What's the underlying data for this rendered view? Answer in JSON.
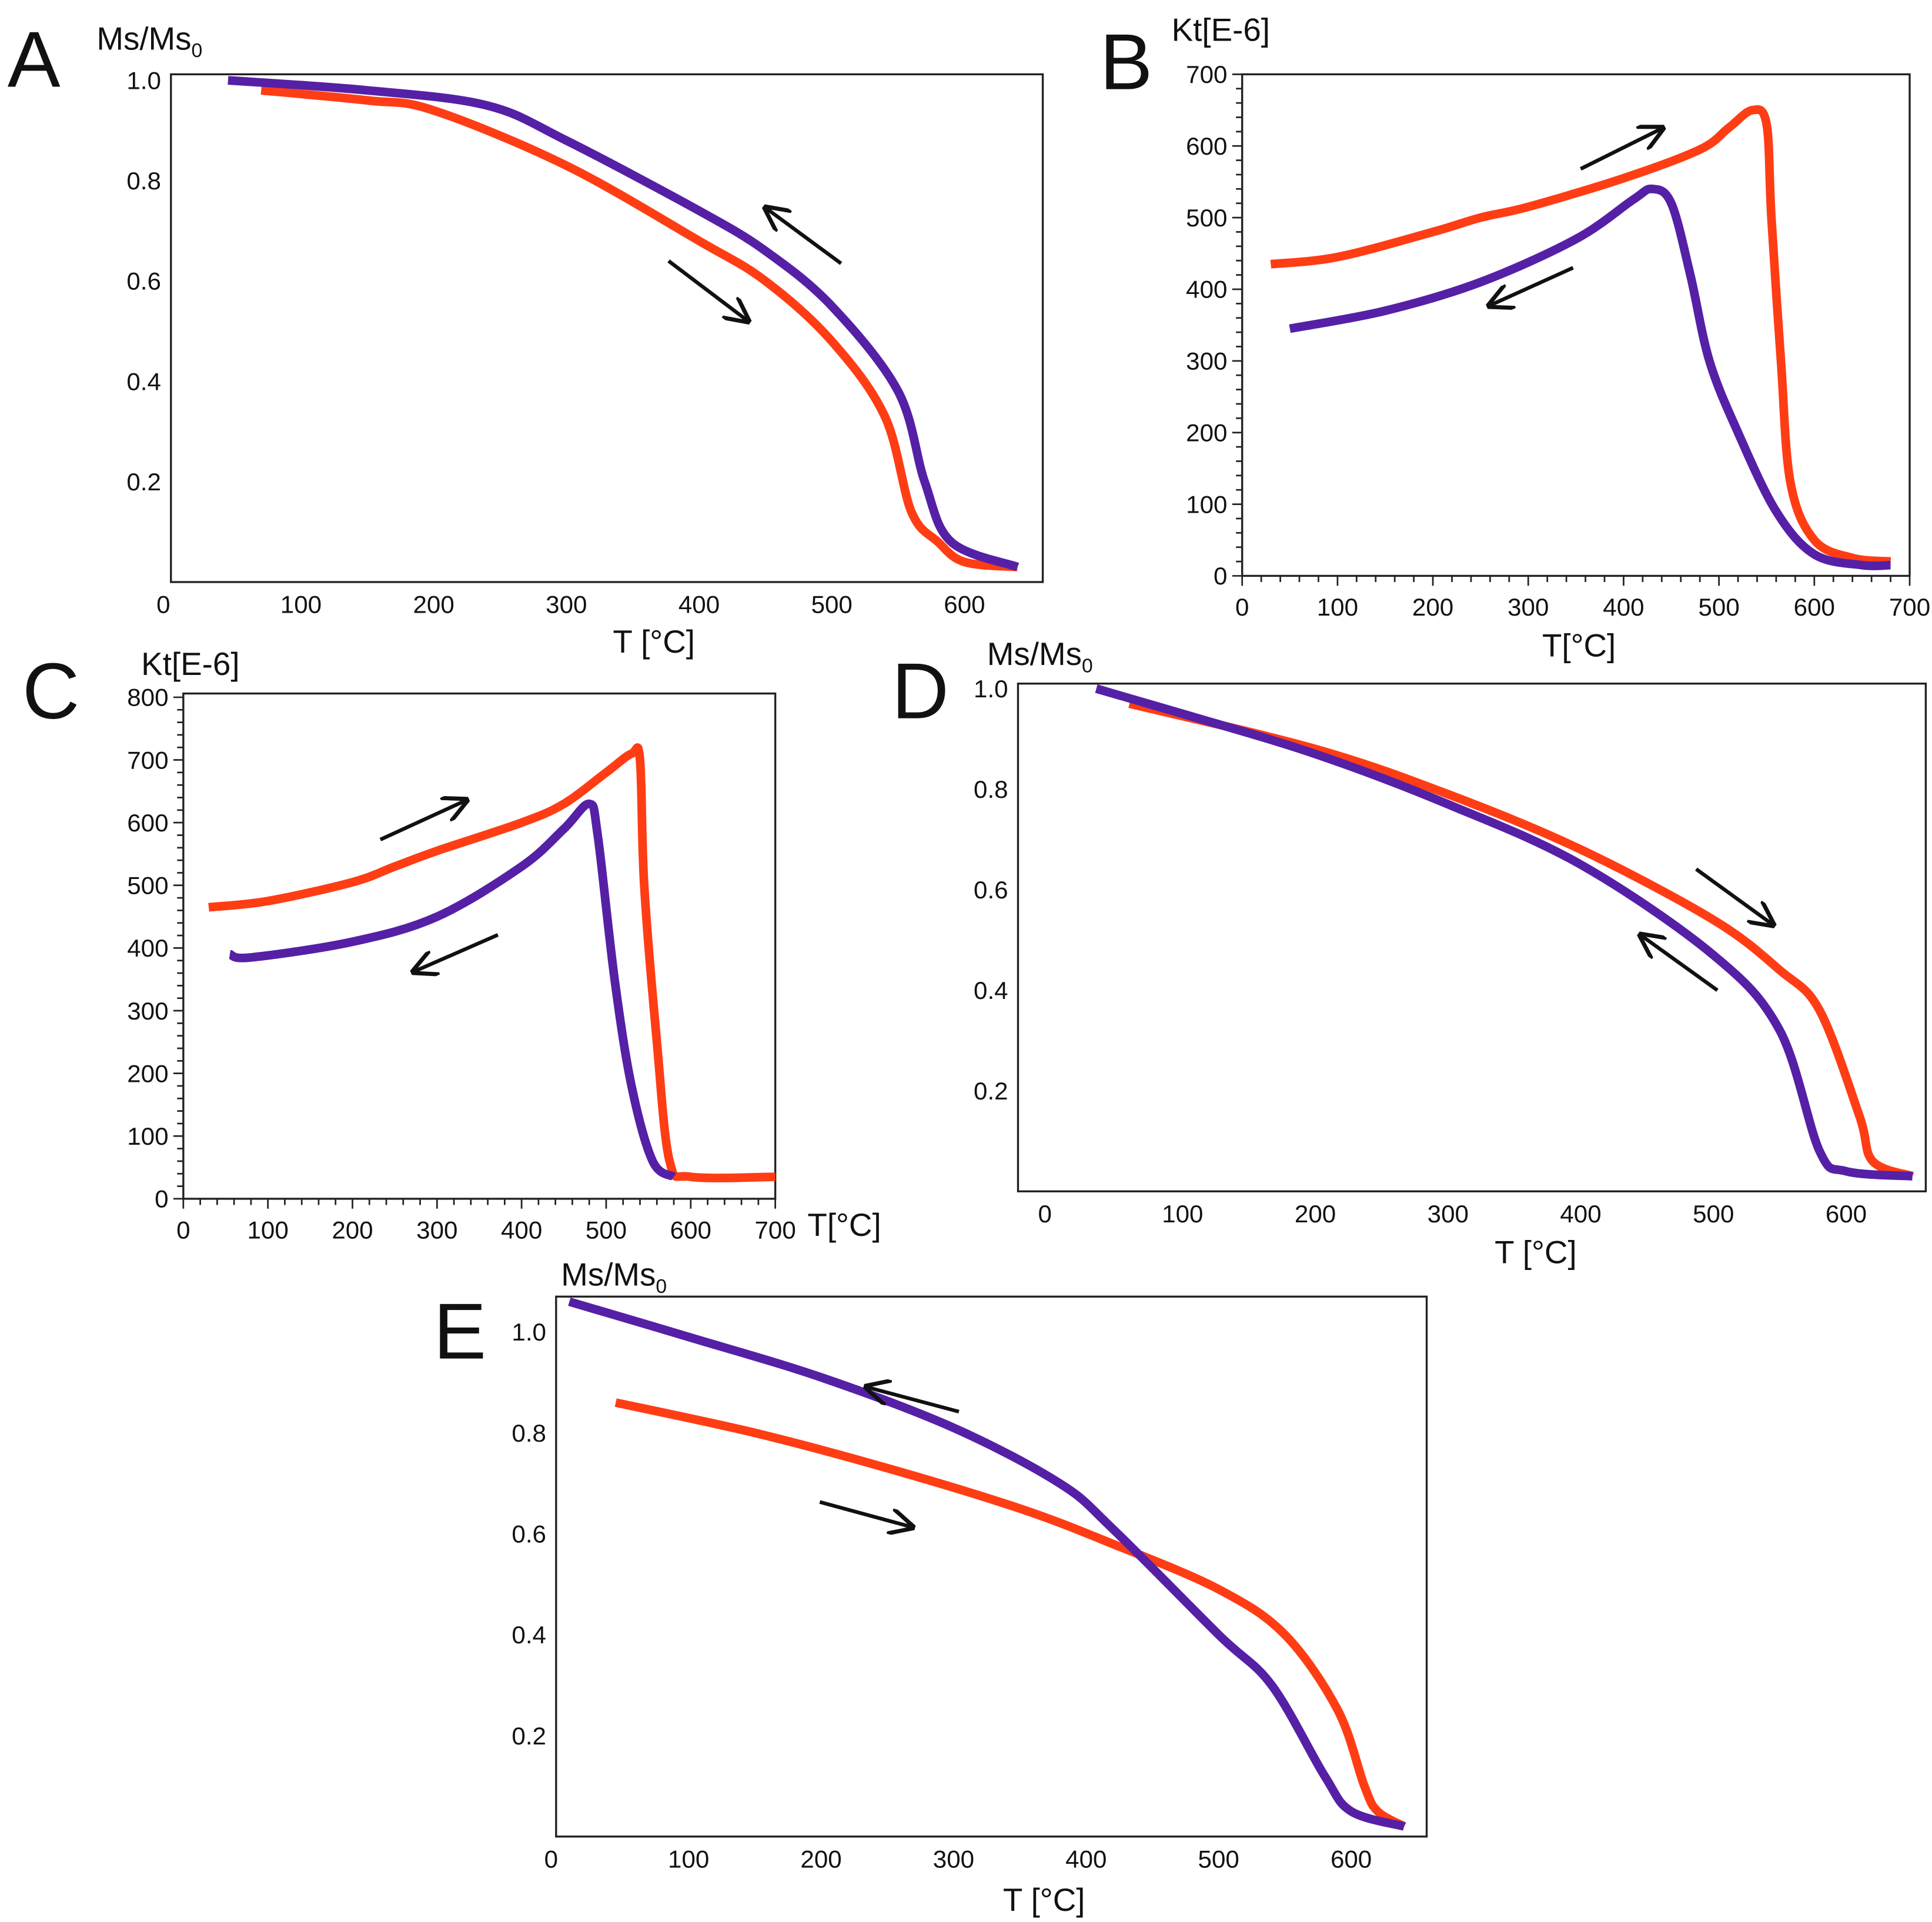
{
  "colors": {
    "heating": "#ff3d14",
    "cooling": "#5520a6",
    "arrow": "#111111"
  },
  "chart_data": [
    {
      "panel": "A",
      "type": "line",
      "ylabel": "Ms/Ms",
      "ylabel_sub": "0",
      "xlabel": "T [°C]",
      "xticks": [
        0,
        100,
        200,
        300,
        400,
        500,
        600
      ],
      "yticks": [
        0.2,
        0.4,
        0.6,
        0.8,
        1.0
      ],
      "xlim": [
        2,
        659
      ],
      "ylim": [
        0,
        1.012
      ],
      "series": [
        {
          "name": "heating",
          "x": [
            70,
            150,
            200,
            300,
            400,
            450,
            500,
            540,
            560,
            580,
            600,
            640
          ],
          "y": [
            0.98,
            0.96,
            0.94,
            0.83,
            0.68,
            0.6,
            0.48,
            0.33,
            0.14,
            0.08,
            0.04,
            0.03
          ]
        },
        {
          "name": "cooling",
          "x": [
            45,
            150,
            240,
            300,
            400,
            450,
            500,
            550,
            570,
            590,
            640
          ],
          "y": [
            1.0,
            0.98,
            0.95,
            0.88,
            0.74,
            0.66,
            0.55,
            0.38,
            0.2,
            0.08,
            0.03
          ]
        }
      ],
      "arrows": [
        {
          "dir": "heating",
          "from": [
            377,
            0.64
          ],
          "to": [
            437,
            0.52
          ]
        },
        {
          "dir": "cooling",
          "from": [
            507,
            0.635
          ],
          "to": [
            450,
            0.746
          ]
        }
      ]
    },
    {
      "panel": "B",
      "type": "line",
      "ylabel": "Kt[E-6]",
      "ylabel_sub": "",
      "xlabel": "T[°C]",
      "xticks": [
        0,
        100,
        200,
        300,
        400,
        500,
        600,
        700
      ],
      "yticks": [
        0,
        100,
        200,
        300,
        400,
        500,
        600,
        700
      ],
      "xlim": [
        0,
        700
      ],
      "ylim": [
        0,
        700
      ],
      "series": [
        {
          "name": "heating",
          "x": [
            30,
            100,
            200,
            250,
            300,
            400,
            480,
            510,
            535,
            550,
            555,
            565,
            575,
            600,
            640,
            680
          ],
          "y": [
            435,
            445,
            480,
            500,
            515,
            555,
            595,
            625,
            650,
            630,
            500,
            300,
            130,
            50,
            25,
            20
          ]
        },
        {
          "name": "cooling",
          "x": [
            50,
            150,
            250,
            350,
            410,
            430,
            450,
            470,
            490,
            520,
            560,
            600,
            650,
            680
          ],
          "y": [
            345,
            370,
            410,
            470,
            525,
            540,
            520,
            420,
            300,
            200,
            90,
            30,
            15,
            15
          ]
        }
      ],
      "arrows": [
        {
          "dir": "heating",
          "from": [
            355,
            568
          ],
          "to": [
            441,
            625
          ]
        },
        {
          "dir": "cooling",
          "from": [
            347,
            430
          ],
          "to": [
            259,
            377
          ]
        }
      ]
    },
    {
      "panel": "C",
      "type": "line",
      "ylabel": "Kt[E-6]",
      "ylabel_sub": "",
      "xlabel": "T[°C]",
      "xticks": [
        0,
        100,
        200,
        300,
        400,
        500,
        600,
        700
      ],
      "yticks": [
        0,
        100,
        200,
        300,
        400,
        500,
        600,
        700,
        800
      ],
      "xlim": [
        0,
        700
      ],
      "ylim": [
        0,
        806
      ],
      "series": [
        {
          "name": "heating",
          "x": [
            30,
            100,
            200,
            250,
            300,
            400,
            450,
            500,
            530,
            540,
            545,
            560,
            575,
            600,
            700
          ],
          "y": [
            465,
            475,
            505,
            530,
            555,
            600,
            630,
            680,
            710,
            700,
            500,
            250,
            60,
            35,
            35
          ]
        },
        {
          "name": "cooling",
          "x": [
            55,
            80,
            200,
            300,
            400,
            450,
            480,
            490,
            510,
            530,
            555,
            580
          ],
          "y": [
            390,
            385,
            410,
            450,
            530,
            590,
            630,
            580,
            350,
            180,
            60,
            35
          ]
        }
      ],
      "arrows": [
        {
          "dir": "heating",
          "from": [
            233,
            573
          ],
          "to": [
            335,
            636
          ]
        },
        {
          "dir": "cooling",
          "from": [
            372,
            421
          ],
          "to": [
            272,
            362
          ]
        }
      ]
    },
    {
      "panel": "D",
      "type": "line",
      "ylabel": "Ms/Ms",
      "ylabel_sub": "0",
      "xlabel": "T [°C]",
      "xticks": [
        0,
        100,
        200,
        300,
        400,
        500,
        600
      ],
      "yticks": [
        0.2,
        0.4,
        0.6,
        0.8,
        1.0
      ],
      "xlim": [
        -24,
        660
      ],
      "ylim": [
        0,
        1.01
      ],
      "series": [
        {
          "name": "heating",
          "x": [
            60,
            200,
            300,
            400,
            500,
            550,
            580,
            610,
            620,
            650
          ],
          "y": [
            0.97,
            0.88,
            0.79,
            0.68,
            0.54,
            0.44,
            0.36,
            0.15,
            0.06,
            0.03
          ]
        },
        {
          "name": "cooling",
          "x": [
            35,
            100,
            200,
            300,
            400,
            500,
            550,
            580,
            600,
            650
          ],
          "y": [
            1.0,
            0.95,
            0.87,
            0.77,
            0.65,
            0.47,
            0.32,
            0.08,
            0.04,
            0.03
          ]
        }
      ],
      "arrows": [
        {
          "dir": "heating",
          "from": [
            487,
            0.641
          ],
          "to": [
            545,
            0.53
          ]
        },
        {
          "dir": "cooling",
          "from": [
            503,
            0.4
          ],
          "to": [
            445,
            0.51
          ]
        }
      ]
    },
    {
      "panel": "E",
      "type": "line",
      "ylabel": "Ms/Ms",
      "ylabel_sub": "0",
      "xlabel": "T [°C]",
      "xticks": [
        0,
        100,
        200,
        300,
        400,
        500,
        600
      ],
      "yticks": [
        0.2,
        0.4,
        0.6,
        0.8,
        1.0
      ],
      "xlim": [
        0,
        657
      ],
      "ylim": [
        0,
        1.07
      ],
      "series": [
        {
          "name": "heating",
          "x": [
            45,
            150,
            250,
            350,
            420,
            500,
            550,
            590,
            610,
            620,
            640
          ],
          "y": [
            0.86,
            0.8,
            0.73,
            0.65,
            0.58,
            0.49,
            0.4,
            0.25,
            0.1,
            0.05,
            0.02
          ]
        },
        {
          "name": "cooling",
          "x": [
            10,
            100,
            200,
            300,
            380,
            420,
            500,
            540,
            580,
            600,
            640
          ],
          "y": [
            1.06,
            0.99,
            0.91,
            0.81,
            0.7,
            0.61,
            0.4,
            0.3,
            0.12,
            0.05,
            0.02
          ]
        }
      ],
      "arrows": [
        {
          "dir": "cooling",
          "from": [
            304,
            0.842
          ],
          "to": [
            234,
            0.891
          ]
        },
        {
          "dir": "heating",
          "from": [
            199,
            0.663
          ],
          "to": [
            269,
            0.613
          ]
        }
      ]
    }
  ]
}
